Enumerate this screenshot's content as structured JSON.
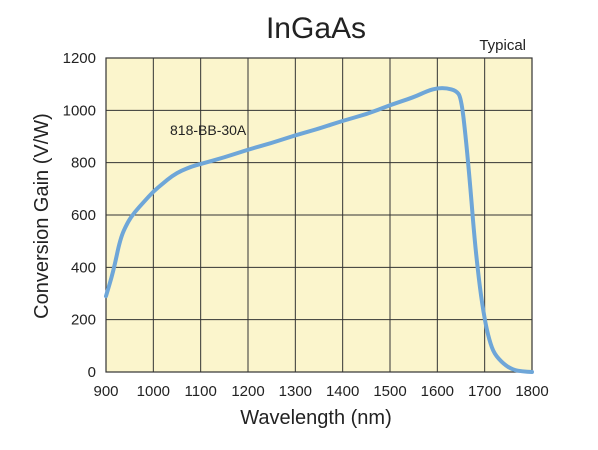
{
  "chart_data": {
    "type": "line",
    "title": "InGaAs",
    "subtitle": "Typical",
    "xlabel": "Wavelength (nm)",
    "ylabel": "Conversion Gain (V/W)",
    "xlim": [
      900,
      1800
    ],
    "ylim": [
      0,
      1200
    ],
    "xticks": [
      900,
      1000,
      1100,
      1200,
      1300,
      1400,
      1500,
      1600,
      1700,
      1800
    ],
    "yticks": [
      0,
      200,
      400,
      600,
      800,
      1000,
      1200
    ],
    "grid": true,
    "series": [
      {
        "name": "818-BB-30A",
        "color": "#6ea6d8",
        "x": [
          900,
          915,
          930,
          945,
          960,
          980,
          1000,
          1020,
          1040,
          1060,
          1080,
          1100,
          1150,
          1200,
          1250,
          1300,
          1350,
          1400,
          1450,
          1500,
          1550,
          1580,
          1600,
          1620,
          1640,
          1650,
          1660,
          1670,
          1680,
          1690,
          1700,
          1710,
          1720,
          1740,
          1760,
          1780,
          1800
        ],
        "y": [
          290,
          380,
          510,
          570,
          610,
          650,
          690,
          720,
          750,
          770,
          785,
          795,
          820,
          850,
          875,
          905,
          930,
          960,
          985,
          1020,
          1050,
          1075,
          1085,
          1085,
          1075,
          1050,
          900,
          700,
          480,
          320,
          200,
          120,
          70,
          30,
          8,
          2,
          0
        ]
      }
    ]
  }
}
